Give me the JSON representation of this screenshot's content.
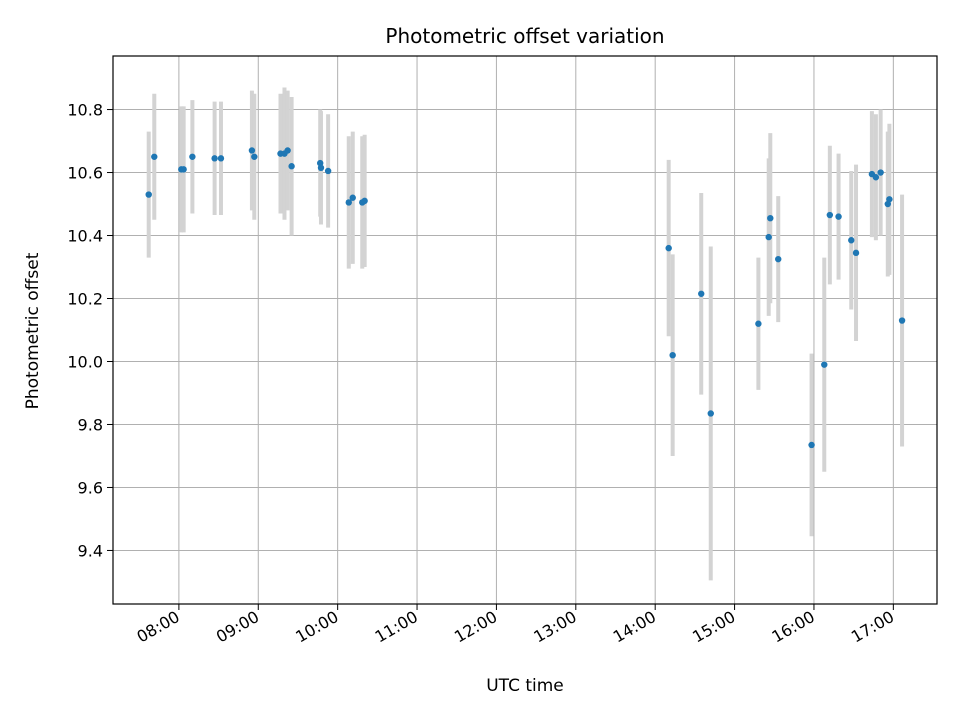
{
  "chart_data": {
    "type": "scatter",
    "title": "Photometric offset variation",
    "xlabel": "UTC time",
    "ylabel": "Photometric offset",
    "x_unit": "hours UTC",
    "xlim": [
      7.17,
      17.55
    ],
    "ylim": [
      9.23,
      10.97
    ],
    "grid": true,
    "x_ticks": [
      {
        "value": 8,
        "label": "08:00"
      },
      {
        "value": 9,
        "label": "09:00"
      },
      {
        "value": 10,
        "label": "10:00"
      },
      {
        "value": 11,
        "label": "11:00"
      },
      {
        "value": 12,
        "label": "12:00"
      },
      {
        "value": 13,
        "label": "13:00"
      },
      {
        "value": 14,
        "label": "14:00"
      },
      {
        "value": 15,
        "label": "15:00"
      },
      {
        "value": 16,
        "label": "16:00"
      },
      {
        "value": 17,
        "label": "17:00"
      }
    ],
    "y_ticks": [
      {
        "value": 9.4,
        "label": "9.4"
      },
      {
        "value": 9.6,
        "label": "9.6"
      },
      {
        "value": 9.8,
        "label": "9.8"
      },
      {
        "value": 10.0,
        "label": "10.0"
      },
      {
        "value": 10.2,
        "label": "10.2"
      },
      {
        "value": 10.4,
        "label": "10.4"
      },
      {
        "value": 10.6,
        "label": "10.6"
      },
      {
        "value": 10.8,
        "label": "10.8"
      }
    ],
    "marker_color": "#1f77b4",
    "errorbar_color": "#d3d3d3",
    "points": [
      {
        "x": 7.62,
        "y": 10.53,
        "err": 0.2
      },
      {
        "x": 7.69,
        "y": 10.65,
        "err": 0.2
      },
      {
        "x": 8.03,
        "y": 10.61,
        "err": 0.2
      },
      {
        "x": 8.06,
        "y": 10.61,
        "err": 0.2
      },
      {
        "x": 8.17,
        "y": 10.65,
        "err": 0.18
      },
      {
        "x": 8.45,
        "y": 10.645,
        "err": 0.18
      },
      {
        "x": 8.53,
        "y": 10.645,
        "err": 0.18
      },
      {
        "x": 8.92,
        "y": 10.67,
        "err": 0.19
      },
      {
        "x": 8.95,
        "y": 10.65,
        "err": 0.2
      },
      {
        "x": 9.28,
        "y": 10.66,
        "err": 0.19
      },
      {
        "x": 9.33,
        "y": 10.66,
        "err": 0.21
      },
      {
        "x": 9.37,
        "y": 10.67,
        "err": 0.19
      },
      {
        "x": 9.42,
        "y": 10.62,
        "err": 0.22
      },
      {
        "x": 9.78,
        "y": 10.63,
        "err": 0.17
      },
      {
        "x": 9.79,
        "y": 10.615,
        "err": 0.18
      },
      {
        "x": 9.88,
        "y": 10.605,
        "err": 0.18
      },
      {
        "x": 10.14,
        "y": 10.505,
        "err": 0.21
      },
      {
        "x": 10.19,
        "y": 10.52,
        "err": 0.21
      },
      {
        "x": 10.31,
        "y": 10.505,
        "err": 0.21
      },
      {
        "x": 10.34,
        "y": 10.51,
        "err": 0.21
      },
      {
        "x": 14.17,
        "y": 10.36,
        "err": 0.28
      },
      {
        "x": 14.22,
        "y": 10.02,
        "err": 0.32
      },
      {
        "x": 14.58,
        "y": 10.215,
        "err": 0.32
      },
      {
        "x": 14.7,
        "y": 9.835,
        "err": 0.53
      },
      {
        "x": 15.3,
        "y": 10.12,
        "err": 0.21
      },
      {
        "x": 15.43,
        "y": 10.395,
        "err": 0.25
      },
      {
        "x": 15.45,
        "y": 10.455,
        "err": 0.27
      },
      {
        "x": 15.55,
        "y": 10.325,
        "err": 0.2
      },
      {
        "x": 15.97,
        "y": 9.735,
        "err": 0.29
      },
      {
        "x": 16.13,
        "y": 9.99,
        "err": 0.34
      },
      {
        "x": 16.2,
        "y": 10.465,
        "err": 0.22
      },
      {
        "x": 16.31,
        "y": 10.46,
        "err": 0.2
      },
      {
        "x": 16.47,
        "y": 10.385,
        "err": 0.22
      },
      {
        "x": 16.53,
        "y": 10.345,
        "err": 0.28
      },
      {
        "x": 16.73,
        "y": 10.595,
        "err": 0.2
      },
      {
        "x": 16.78,
        "y": 10.585,
        "err": 0.2
      },
      {
        "x": 16.84,
        "y": 10.6,
        "err": 0.2
      },
      {
        "x": 16.93,
        "y": 10.5,
        "err": 0.23
      },
      {
        "x": 16.95,
        "y": 10.515,
        "err": 0.24
      },
      {
        "x": 17.11,
        "y": 10.13,
        "err": 0.4
      }
    ]
  }
}
